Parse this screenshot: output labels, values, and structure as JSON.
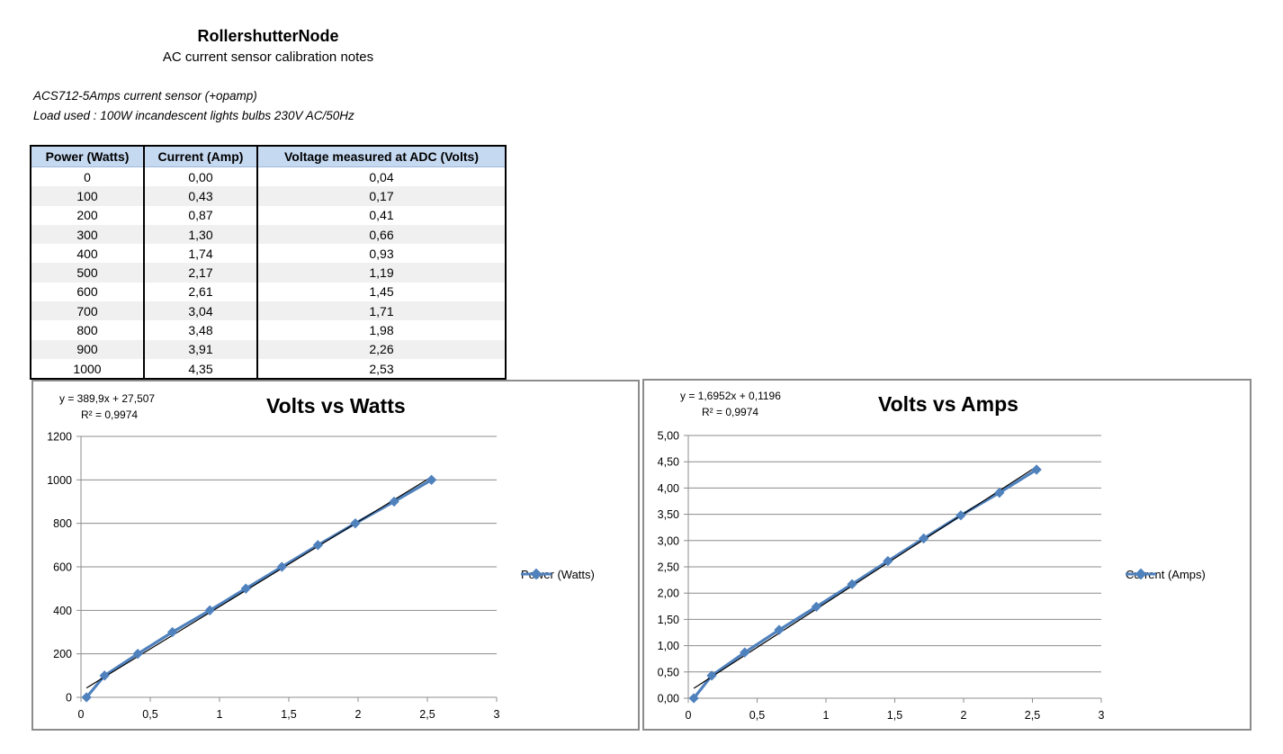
{
  "document": {
    "title": "RollershutterNode",
    "subtitle": "AC current sensor calibration notes",
    "note1": "ACS712-5Amps current sensor (+opamp)",
    "note2": "Load used : 100W incandescent lights bulbs 230V AC/50Hz"
  },
  "table": {
    "headers": [
      "Power (Watts)",
      "Current (Amp)",
      "Voltage measured at ADC (Volts)"
    ],
    "rows": [
      [
        "0",
        "0,00",
        "0,04"
      ],
      [
        "100",
        "0,43",
        "0,17"
      ],
      [
        "200",
        "0,87",
        "0,41"
      ],
      [
        "300",
        "1,30",
        "0,66"
      ],
      [
        "400",
        "1,74",
        "0,93"
      ],
      [
        "500",
        "2,17",
        "1,19"
      ],
      [
        "600",
        "2,61",
        "1,45"
      ],
      [
        "700",
        "3,04",
        "1,71"
      ],
      [
        "800",
        "3,48",
        "1,98"
      ],
      [
        "900",
        "3,91",
        "2,26"
      ],
      [
        "1000",
        "4,35",
        "2,53"
      ]
    ]
  },
  "colors": {
    "series": "#4f81bd",
    "trendline": "#000000",
    "grid": "#8c8c8c",
    "header_bg": "#c5d9f1"
  },
  "chart_data": [
    {
      "type": "line",
      "title": "Volts vs Watts",
      "trendline_equation": "y = 389,9x + 27,507",
      "r_squared": "R² = 0,9974",
      "trendline": {
        "slope": 389.9,
        "intercept": 27.507
      },
      "xlim": [
        0,
        3
      ],
      "ylim": [
        0,
        1200
      ],
      "xticks": [
        0,
        0.5,
        1,
        1.5,
        2,
        2.5,
        3
      ],
      "xtick_labels": [
        "0",
        "0,5",
        "1",
        "1,5",
        "2",
        "2,5",
        "3"
      ],
      "yticks": [
        0,
        200,
        400,
        600,
        800,
        1000,
        1200
      ],
      "ytick_labels": [
        "0",
        "200",
        "400",
        "600",
        "800",
        "1000",
        "1200"
      ],
      "grid": true,
      "legend": "right",
      "series": [
        {
          "name": "Power (Watts)",
          "x": [
            0.04,
            0.17,
            0.41,
            0.66,
            0.93,
            1.19,
            1.45,
            1.71,
            1.98,
            2.26,
            2.53
          ],
          "y": [
            0,
            100,
            200,
            300,
            400,
            500,
            600,
            700,
            800,
            900,
            1000
          ]
        }
      ]
    },
    {
      "type": "line",
      "title": "Volts vs Amps",
      "trendline_equation": "y = 1,6952x + 0,1196",
      "r_squared": "R² = 0,9974",
      "trendline": {
        "slope": 1.6952,
        "intercept": 0.1196
      },
      "xlim": [
        0,
        3
      ],
      "ylim": [
        0,
        5
      ],
      "xticks": [
        0,
        0.5,
        1,
        1.5,
        2,
        2.5,
        3
      ],
      "xtick_labels": [
        "0",
        "0,5",
        "1",
        "1,5",
        "2",
        "2,5",
        "3"
      ],
      "yticks": [
        0,
        0.5,
        1,
        1.5,
        2,
        2.5,
        3,
        3.5,
        4,
        4.5,
        5
      ],
      "ytick_labels": [
        "0,00",
        "0,50",
        "1,00",
        "1,50",
        "2,00",
        "2,50",
        "3,00",
        "3,50",
        "4,00",
        "4,50",
        "5,00"
      ],
      "grid": true,
      "legend": "right",
      "series": [
        {
          "name": "Current (Amps)",
          "x": [
            0.04,
            0.17,
            0.41,
            0.66,
            0.93,
            1.19,
            1.45,
            1.71,
            1.98,
            2.26,
            2.53
          ],
          "y": [
            0.0,
            0.43,
            0.87,
            1.3,
            1.74,
            2.17,
            2.61,
            3.04,
            3.48,
            3.91,
            4.35
          ]
        }
      ]
    }
  ]
}
